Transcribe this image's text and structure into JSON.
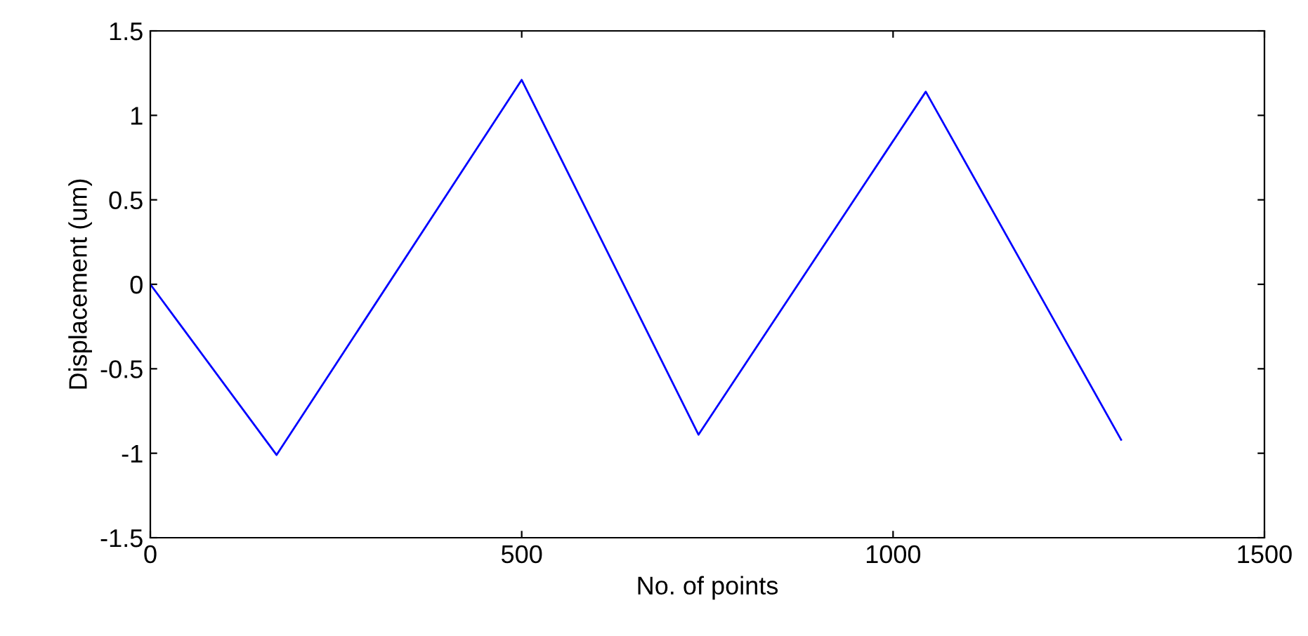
{
  "chart_data": {
    "type": "line",
    "xlabel": "No. of points",
    "ylabel": "Displacement (um)",
    "series": [
      {
        "color": "#0000ff",
        "x": [
          0,
          170,
          500,
          738,
          1044,
          1307
        ],
        "values": [
          0,
          -1.01,
          1.21,
          -0.89,
          1.14,
          -0.92
        ]
      }
    ],
    "xlim": [
      0,
      1500
    ],
    "xticks": [
      0,
      500,
      1000,
      1500
    ],
    "ylim": [
      -1.5,
      1.5
    ],
    "yticks": [
      -1.5,
      -1,
      -0.5,
      0,
      0.5,
      1,
      1.5
    ],
    "grid": false,
    "legend": false,
    "line_style": "solid",
    "marker": "none"
  }
}
